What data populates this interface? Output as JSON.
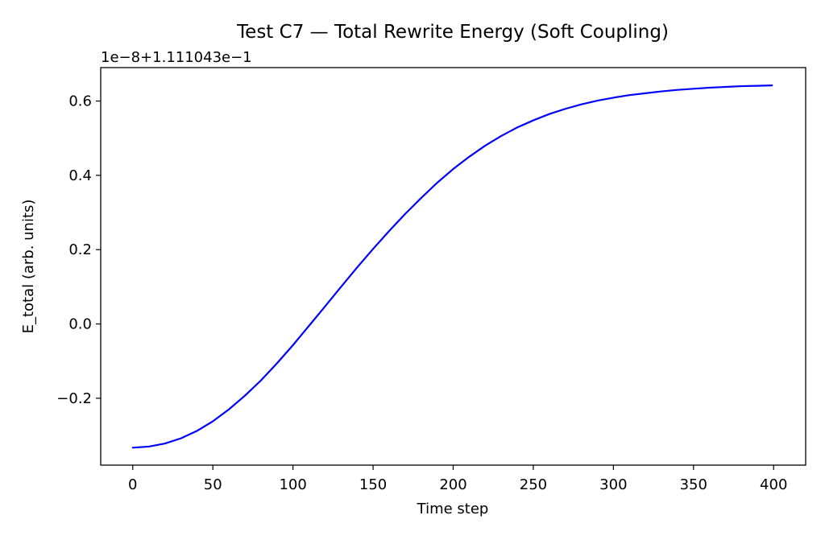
{
  "chart_data": {
    "type": "line",
    "title": "Test C7 — Total Rewrite Energy (Soft Coupling)",
    "xlabel": "Time step",
    "ylabel": "E_total (arb. units)",
    "y_offset_label": "1e−8+1.111043e−1",
    "xlim": [
      -20,
      420
    ],
    "ylim": [
      -0.38,
      0.69
    ],
    "x_ticks": [
      0,
      50,
      100,
      150,
      200,
      250,
      300,
      350,
      400
    ],
    "x_tick_labels": [
      "0",
      "50",
      "100",
      "150",
      "200",
      "250",
      "300",
      "350",
      "400"
    ],
    "y_ticks": [
      -0.2,
      0.0,
      0.2,
      0.4,
      0.6
    ],
    "y_tick_labels": [
      "−0.2",
      "0.0",
      "0.2",
      "0.4",
      "0.6"
    ],
    "grid": false,
    "legend": "none",
    "series": [
      {
        "color": "#0000ff",
        "x": [
          0,
          10,
          20,
          30,
          40,
          50,
          60,
          70,
          80,
          90,
          100,
          110,
          120,
          130,
          140,
          150,
          160,
          170,
          180,
          190,
          200,
          210,
          220,
          230,
          240,
          250,
          260,
          270,
          280,
          290,
          300,
          310,
          320,
          330,
          340,
          350,
          360,
          370,
          380,
          390,
          399
        ],
        "y": [
          -0.333,
          -0.33,
          -0.322,
          -0.308,
          -0.288,
          -0.262,
          -0.23,
          -0.193,
          -0.152,
          -0.106,
          -0.057,
          -0.005,
          0.047,
          0.1,
          0.152,
          0.202,
          0.25,
          0.296,
          0.339,
          0.38,
          0.417,
          0.45,
          0.48,
          0.506,
          0.529,
          0.548,
          0.565,
          0.579,
          0.591,
          0.601,
          0.609,
          0.616,
          0.621,
          0.626,
          0.63,
          0.633,
          0.636,
          0.638,
          0.64,
          0.641,
          0.642
        ]
      }
    ]
  }
}
